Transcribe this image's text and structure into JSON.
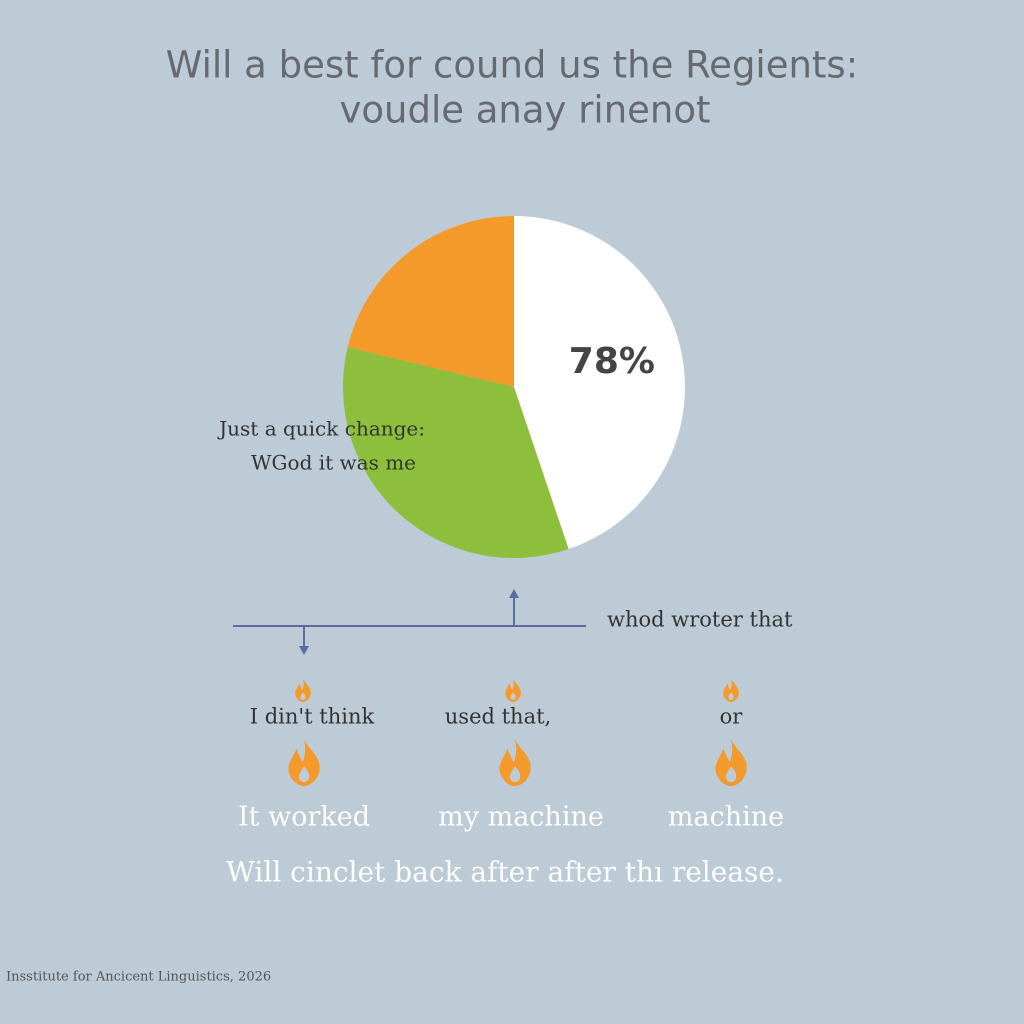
{
  "chart_data": {
    "type": "pie",
    "title": "Will a best for cound us the Regients:",
    "subtitle": "voudle anay rinenot",
    "values": [
      78,
      59,
      37
    ],
    "value_labels": [
      "78%",
      null,
      null
    ],
    "colors": [
      "#ffffff",
      "#8dbf3c",
      "#f39a2b"
    ],
    "annotations": [
      "Just a quick change:",
      "WGod it was me"
    ]
  },
  "callout": "whod wroter that",
  "items": [
    {
      "top": "I din't think",
      "bottom": "It worked"
    },
    {
      "top": "used that,",
      "bottom": "my machine"
    },
    {
      "top": "or",
      "bottom": "machine"
    }
  ],
  "message": "Will cinclet back after after thı release.",
  "source": "Insstitute for Ancicent Linguistics, 2026"
}
